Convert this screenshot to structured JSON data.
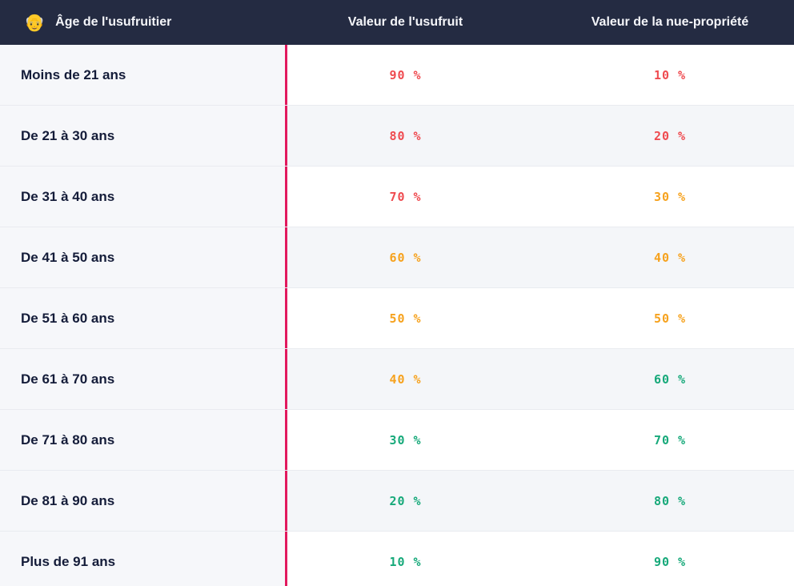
{
  "theme": {
    "header_bg": "#242b42",
    "header_text": "#f5f6fa",
    "label_color": "#141c39",
    "col1_bg": "#f6f7fa",
    "row_alt_bg": "#f4f6f9",
    "divider": "#e9ebf0",
    "accent_line": "#e2195e",
    "value_red": "#ef4b50",
    "value_orange": "#f6a21e",
    "value_green": "#17a97a"
  },
  "table": {
    "header": {
      "icon": "👴",
      "age_label": "Âge de l'usufruitier",
      "usufruit_label": "Valeur de l'usufruit",
      "nue_propriete_label": "Valeur de la nue-propriété"
    },
    "rows": [
      {
        "age": "Moins de 21 ans",
        "usufruit": "90 %",
        "nue_propriete": "10 %",
        "usufruit_color": "red",
        "nue_color": "red"
      },
      {
        "age": "De 21 à 30 ans",
        "usufruit": "80 %",
        "nue_propriete": "20 %",
        "usufruit_color": "red",
        "nue_color": "red"
      },
      {
        "age": "De 31 à 40 ans",
        "usufruit": "70 %",
        "nue_propriete": "30 %",
        "usufruit_color": "red",
        "nue_color": "orange"
      },
      {
        "age": "De 41 à 50 ans",
        "usufruit": "60 %",
        "nue_propriete": "40 %",
        "usufruit_color": "orange",
        "nue_color": "orange"
      },
      {
        "age": "De 51 à 60 ans",
        "usufruit": "50 %",
        "nue_propriete": "50 %",
        "usufruit_color": "orange",
        "nue_color": "orange"
      },
      {
        "age": "De 61 à 70 ans",
        "usufruit": "40 %",
        "nue_propriete": "60 %",
        "usufruit_color": "orange",
        "nue_color": "green"
      },
      {
        "age": "De 71 à 80 ans",
        "usufruit": "30 %",
        "nue_propriete": "70 %",
        "usufruit_color": "green",
        "nue_color": "green"
      },
      {
        "age": "De 81 à 90 ans",
        "usufruit": "20 %",
        "nue_propriete": "80 %",
        "usufruit_color": "green",
        "nue_color": "green"
      },
      {
        "age": "Plus de 91 ans",
        "usufruit": "10 %",
        "nue_propriete": "90 %",
        "usufruit_color": "green",
        "nue_color": "green"
      }
    ]
  }
}
